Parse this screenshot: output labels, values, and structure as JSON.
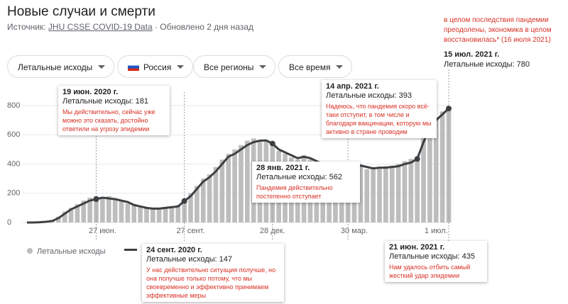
{
  "header": {
    "title": "Новые случаи и смерти",
    "source_label": "Источник:",
    "source_link": "JHU CSSE COVID-19 Data",
    "updated": "· Обновлено 2 дня назад"
  },
  "filters": [
    "Летальные исходы",
    "Россия",
    "Все регионы",
    "Все время"
  ],
  "annotations": [
    {
      "date": "19 июн. 2020 г.",
      "value": "Летальные исходы: 181",
      "note": "Мы действительно, сейчас уже можно это сказать, достойно ответили на угрозу эпидемии"
    },
    {
      "date": "24 сент. 2020 г.",
      "value": "Летальные исходы: 147",
      "note": "У нас действительно ситуация получше, но она получше только потому, что мы своевременно и эффективно принимаем эффективные меры"
    },
    {
      "date": "28 янв. 2021 г.",
      "value": "Летальные исходы: 562",
      "note": "Пандемия действительно постепенно отступает"
    },
    {
      "date": "14 апр. 2021 г.",
      "value": "Летальные исходы: 393",
      "note": "Надеюсь, что пандемия скоро всё-таки отступит, в том числе и благодаря вакцинации, которую мы активно в стране проводим"
    },
    {
      "date": "21 июн. 2021 г.",
      "value": "Летальные исходы: 435",
      "note": "Нам удалось отбить самый жесткий удар эпидемии"
    },
    {
      "date": "15 июл. 2021 г.",
      "value": "Летальные исходы: 780",
      "note": "в целом последствия пандемии преодолены, экономика в целом восстановилась* (16 июля 2021)"
    }
  ],
  "chart_data": {
    "type": "bar",
    "categories": [
      null,
      null,
      null,
      null,
      null,
      null,
      null,
      null,
      null,
      null,
      null,
      null,
      "27 июн.",
      null,
      null,
      null,
      null,
      null,
      null,
      null,
      null,
      null,
      null,
      null,
      null,
      null,
      "27 сент.",
      null,
      null,
      null,
      null,
      null,
      null,
      null,
      null,
      null,
      null,
      null,
      null,
      "28 дек.",
      null,
      null,
      null,
      null,
      null,
      null,
      null,
      null,
      null,
      null,
      null,
      null,
      "30 мар.",
      null,
      null,
      null,
      null,
      null,
      null,
      null,
      null,
      null,
      null,
      null,
      null,
      "1 июл.",
      null,
      null
    ],
    "series": [
      {
        "name": "Летальные исходы",
        "type": "bar",
        "color": "#bdbdbd",
        "values": [
          2,
          4,
          6,
          10,
          18,
          40,
          75,
          100,
          125,
          150,
          170,
          181,
          175,
          180,
          165,
          155,
          130,
          125,
          105,
          100,
          90,
          100,
          105,
          110,
          120,
          147,
          200,
          250,
          300,
          330,
          380,
          430,
          470,
          500,
          530,
          560,
          575,
          565,
          562,
          520,
          490,
          470,
          445,
          430,
          460,
          430,
          410,
          390,
          380,
          370,
          395,
          393,
          400,
          385,
          365,
          380,
          370,
          385,
          390,
          400,
          420,
          435,
          440,
          600,
          700,
          720,
          760,
          780
        ]
      },
      {
        "type": "line",
        "color": "#3c4043",
        "values": [
          0,
          0,
          2,
          5,
          10,
          30,
          60,
          90,
          110,
          130,
          150,
          160,
          170,
          165,
          160,
          150,
          140,
          120,
          110,
          100,
          95,
          95,
          100,
          105,
          110,
          147,
          180,
          230,
          280,
          310,
          350,
          400,
          450,
          470,
          500,
          530,
          550,
          560,
          562,
          540,
          500,
          480,
          460,
          440,
          450,
          440,
          420,
          400,
          390,
          380,
          380,
          385,
          393,
          390,
          380,
          370,
          375,
          375,
          380,
          385,
          400,
          410,
          435,
          550,
          650,
          700,
          740,
          780
        ]
      }
    ],
    "ylim": [
      0,
      800
    ],
    "yticks": [
      0,
      200,
      400,
      600,
      800
    ],
    "grid": true
  }
}
